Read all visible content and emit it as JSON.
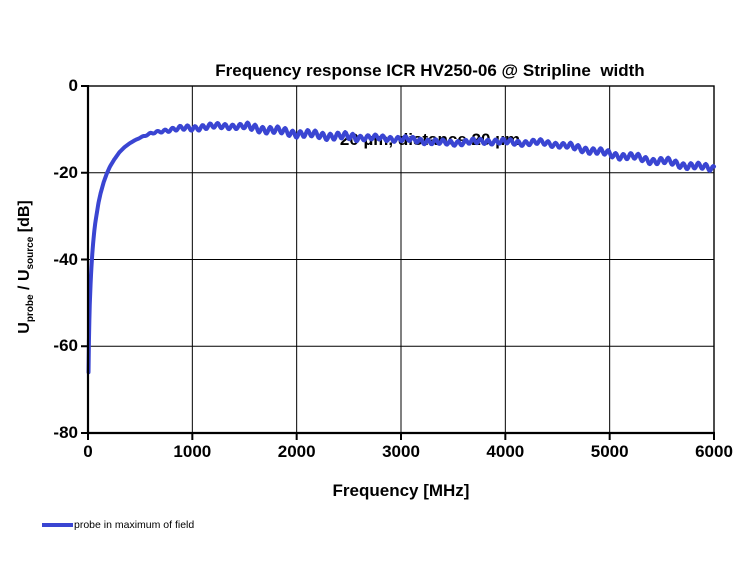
{
  "title": {
    "line1": "Frequency response ICR HV250-06 @ Stripline  width",
    "line2": "20 µm, distance 20 µm"
  },
  "y_axis_label": {
    "u1": "U",
    "sub1": "probe",
    "mid": " / U",
    "sub2": "source",
    "unit": " [dB]"
  },
  "x_axis_title": "Frequency [MHz]",
  "legend": {
    "entry": "probe in maximum of field",
    "swatch_color": "#3a45d2"
  },
  "colors": {
    "line": "#3a45d2",
    "grid": "#000000",
    "axis": "#000000",
    "background": "#ffffff"
  },
  "chart_data": {
    "type": "line",
    "title": "Frequency response ICR HV250-06 @ Stripline width 20 µm, distance 20 µm",
    "xlabel": "Frequency [MHz]",
    "ylabel": "Uprobe / Usource [dB]",
    "xlim": [
      0,
      6000
    ],
    "ylim": [
      -80,
      0
    ],
    "x_ticks": [
      0,
      1000,
      2000,
      3000,
      4000,
      5000,
      6000
    ],
    "x_tick_labels": [
      "0",
      "1000",
      "2000",
      "3000",
      "4000",
      "5000",
      "6000"
    ],
    "y_ticks": [
      0,
      -20,
      -40,
      -60,
      -80
    ],
    "y_tick_labels": [
      "0",
      "-20",
      "-40",
      "-60",
      "-80"
    ],
    "grid": true,
    "legend_position": "bottom-left",
    "series": [
      {
        "name": "probe in maximum of field",
        "color": "#3a45d2",
        "trend_points": [
          [
            5,
            -66
          ],
          [
            8,
            -60
          ],
          [
            12,
            -55
          ],
          [
            16,
            -51
          ],
          [
            20,
            -48.5
          ],
          [
            25,
            -45.5
          ],
          [
            30,
            -43
          ],
          [
            40,
            -39
          ],
          [
            50,
            -36
          ],
          [
            60,
            -33.5
          ],
          [
            70,
            -31.5
          ],
          [
            80,
            -30
          ],
          [
            100,
            -27
          ],
          [
            120,
            -24.8
          ],
          [
            150,
            -22.2
          ],
          [
            180,
            -20.2
          ],
          [
            210,
            -18.6
          ],
          [
            250,
            -17
          ],
          [
            300,
            -15.3
          ],
          [
            350,
            -14.1
          ],
          [
            400,
            -13.2
          ],
          [
            450,
            -12.5
          ],
          [
            500,
            -11.9
          ],
          [
            600,
            -11
          ],
          [
            700,
            -10.4
          ],
          [
            800,
            -10
          ],
          [
            900,
            -9.8
          ],
          [
            1000,
            -9.7
          ],
          [
            1100,
            -9.4
          ],
          [
            1200,
            -9.3
          ],
          [
            1350,
            -9.2
          ],
          [
            1500,
            -9.4
          ],
          [
            1650,
            -9.8
          ],
          [
            1800,
            -10.3
          ],
          [
            2000,
            -10.9
          ],
          [
            2200,
            -11.3
          ],
          [
            2400,
            -11.6
          ],
          [
            2700,
            -11.9
          ],
          [
            3000,
            -12.2
          ],
          [
            3200,
            -12.6
          ],
          [
            3400,
            -13.1
          ],
          [
            3600,
            -13
          ],
          [
            3800,
            -12.7
          ],
          [
            4000,
            -12.9
          ],
          [
            4200,
            -13.1
          ],
          [
            4350,
            -13
          ],
          [
            4500,
            -13.5
          ],
          [
            4700,
            -14.3
          ],
          [
            4900,
            -15.2
          ],
          [
            5100,
            -16.1
          ],
          [
            5250,
            -16.4
          ],
          [
            5400,
            -17.2
          ],
          [
            5550,
            -17.4
          ],
          [
            5700,
            -18.2
          ],
          [
            5850,
            -18.6
          ],
          [
            6000,
            -18.9
          ]
        ],
        "ripple": {
          "components": [
            {
              "period_mhz": 72,
              "base_amp_db": 0.55,
              "phase": 0
            },
            {
              "period_mhz": 310,
              "base_amp_db": 0.22,
              "phase": 2.1
            }
          ],
          "fade_start_mhz": 450,
          "fade_full_mhz": 950,
          "boost": [
            {
              "from": 1500,
              "to": 2600,
              "factor": 1.35
            },
            {
              "from": 4600,
              "to": 6000,
              "factor": 1.2
            }
          ]
        }
      }
    ]
  }
}
